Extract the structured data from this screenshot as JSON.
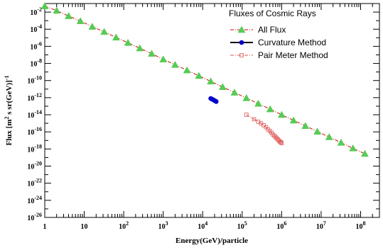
{
  "chart_data": {
    "type": "scatter",
    "title": "",
    "xlabel": "Energy(GeV)/particle",
    "ylabel_main": "Flux [m",
    "ylabel_sup1": "2",
    "ylabel_mid": " s sr(GeV)]",
    "ylabel_sup2": "-1",
    "x_scale": "log",
    "y_scale": "log",
    "xlim": [
      1,
      300000000
    ],
    "ylim": [
      1e-26,
      0.1
    ],
    "grid": false,
    "legend_position": "top-right",
    "legend_title": "Fluxes of Cosmic Rays",
    "x_ticks": [
      {
        "exp": 0,
        "base": "1",
        "sup": ""
      },
      {
        "exp": 1,
        "base": "10",
        "sup": ""
      },
      {
        "exp": 2,
        "base": "10",
        "sup": "2"
      },
      {
        "exp": 3,
        "base": "10",
        "sup": "3"
      },
      {
        "exp": 4,
        "base": "10",
        "sup": "4"
      },
      {
        "exp": 5,
        "base": "10",
        "sup": "5"
      },
      {
        "exp": 6,
        "base": "10",
        "sup": "6"
      },
      {
        "exp": 7,
        "base": "10",
        "sup": "7"
      },
      {
        "exp": 8,
        "base": "10",
        "sup": "8"
      }
    ],
    "y_ticks": [
      {
        "exp": -2,
        "base": "10",
        "sup": "-2"
      },
      {
        "exp": -4,
        "base": "10",
        "sup": "-4"
      },
      {
        "exp": -6,
        "base": "10",
        "sup": "-6"
      },
      {
        "exp": -8,
        "base": "10",
        "sup": "-8"
      },
      {
        "exp": -10,
        "base": "10",
        "sup": "-10"
      },
      {
        "exp": -12,
        "base": "10",
        "sup": "-12"
      },
      {
        "exp": -14,
        "base": "10",
        "sup": "-14"
      },
      {
        "exp": -16,
        "base": "10",
        "sup": "-16"
      },
      {
        "exp": -18,
        "base": "10",
        "sup": "-18"
      },
      {
        "exp": -20,
        "base": "10",
        "sup": "-20"
      },
      {
        "exp": -22,
        "base": "10",
        "sup": "-22"
      },
      {
        "exp": -24,
        "base": "10",
        "sup": "-24"
      },
      {
        "exp": -26,
        "base": "10",
        "sup": "-26"
      }
    ],
    "series": [
      {
        "name": "All Flux",
        "color": "#dd0000",
        "marker": "triangle",
        "marker_color": "#55cc55",
        "points": [
          [
            1,
            0.05
          ],
          [
            2,
            0.015
          ],
          [
            4,
            0.0035
          ],
          [
            8,
            0.0009
          ],
          [
            16,
            0.0002
          ],
          [
            32,
            5e-05
          ],
          [
            64,
            1.1e-05
          ],
          [
            128,
            2.6e-06
          ],
          [
            256,
            6e-07
          ],
          [
            512,
            1.4e-07
          ],
          [
            1000,
            3e-08
          ],
          [
            2000,
            7e-09
          ],
          [
            4000,
            1.6e-09
          ],
          [
            8000,
            3.6e-10
          ],
          [
            16000,
            8e-11
          ],
          [
            32000,
            1.8e-11
          ],
          [
            64000,
            4e-12
          ],
          [
            128000,
            9e-13
          ],
          [
            256000,
            2e-13
          ],
          [
            512000,
            4.5e-14
          ],
          [
            1000000,
            1e-14
          ],
          [
            2000000,
            2.2e-15
          ],
          [
            4000000,
            5e-16
          ],
          [
            8000000,
            1.1e-16
          ],
          [
            16000000,
            2.5e-17
          ],
          [
            32000000,
            5.5e-18
          ],
          [
            64000000,
            1.2e-18
          ],
          [
            128000000,
            2.8e-19
          ]
        ]
      },
      {
        "name": "Curvature Method",
        "color": "#000000",
        "marker": "circle",
        "marker_color": "#0000cc",
        "points": [
          [
            16000,
            8e-13
          ],
          [
            17000,
            7e-13
          ],
          [
            18000,
            6e-13
          ],
          [
            19000,
            5.2e-13
          ],
          [
            20000,
            4.5e-13
          ],
          [
            21000,
            4e-13
          ],
          [
            22000,
            3.5e-13
          ]
        ]
      },
      {
        "name": "Pair Meter Method",
        "color": "#dd5555",
        "marker": "square",
        "marker_color": "#dd5555",
        "points": [
          [
            128000,
            1e-14
          ],
          [
            200000,
            3e-15
          ],
          [
            256000,
            1.5e-15
          ],
          [
            300000,
            1e-15
          ],
          [
            350000,
            6e-16
          ],
          [
            400000,
            3.5e-16
          ],
          [
            450000,
            2e-16
          ],
          [
            500000,
            1.3e-16
          ],
          [
            550000,
            8e-17
          ],
          [
            600000,
            5e-17
          ],
          [
            650000,
            3.5e-17
          ],
          [
            700000,
            2.5e-17
          ],
          [
            750000,
            1.8e-17
          ],
          [
            800000,
            1.3e-17
          ],
          [
            850000,
            1e-17
          ],
          [
            900000,
            7.5e-18
          ],
          [
            950000,
            6e-18
          ],
          [
            1000000,
            5e-18
          ]
        ]
      }
    ]
  }
}
